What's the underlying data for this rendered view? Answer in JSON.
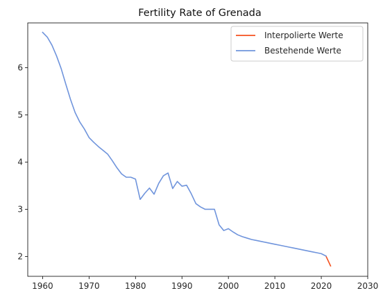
{
  "chart_data": {
    "type": "line",
    "title": "Fertility Rate of Grenada",
    "xlabel": "",
    "ylabel": "",
    "xlim": [
      1956.8,
      2030
    ],
    "ylim": [
      1.58,
      6.95
    ],
    "xticks": [
      1960,
      1970,
      1980,
      1990,
      2000,
      2010,
      2020,
      2030
    ],
    "yticks": [
      2,
      3,
      4,
      5,
      6
    ],
    "grid": false,
    "legend_position": "top-right",
    "series": [
      {
        "name": "Interpolierte Werte",
        "color": "#f4511e",
        "x": [
          2021,
          2022
        ],
        "y": [
          2.01,
          1.8
        ]
      },
      {
        "name": "Bestehende Werte",
        "color": "#6f94dc",
        "x": [
          1960,
          1961,
          1962,
          1963,
          1964,
          1965,
          1966,
          1967,
          1968,
          1969,
          1970,
          1971,
          1972,
          1973,
          1974,
          1975,
          1976,
          1977,
          1978,
          1979,
          1980,
          1981,
          1982,
          1983,
          1984,
          1985,
          1986,
          1987,
          1988,
          1989,
          1990,
          1991,
          1992,
          1993,
          1994,
          1995,
          1996,
          1997,
          1998,
          1999,
          2000,
          2001,
          2002,
          2003,
          2004,
          2005,
          2006,
          2007,
          2008,
          2009,
          2010,
          2011,
          2012,
          2013,
          2014,
          2015,
          2016,
          2017,
          2018,
          2019,
          2020,
          2021
        ],
        "y": [
          6.75,
          6.65,
          6.48,
          6.25,
          5.98,
          5.65,
          5.33,
          5.05,
          4.85,
          4.7,
          4.52,
          4.42,
          4.33,
          4.25,
          4.17,
          4.03,
          3.88,
          3.75,
          3.68,
          3.68,
          3.64,
          3.21,
          3.34,
          3.45,
          3.32,
          3.55,
          3.71,
          3.77,
          3.44,
          3.59,
          3.49,
          3.51,
          3.33,
          3.12,
          3.05,
          3.0,
          3.0,
          3.0,
          2.67,
          2.55,
          2.59,
          2.52,
          2.46,
          2.42,
          2.39,
          2.36,
          2.34,
          2.32,
          2.3,
          2.28,
          2.26,
          2.24,
          2.22,
          2.2,
          2.18,
          2.16,
          2.14,
          2.12,
          2.1,
          2.08,
          2.06,
          2.01
        ]
      }
    ]
  }
}
